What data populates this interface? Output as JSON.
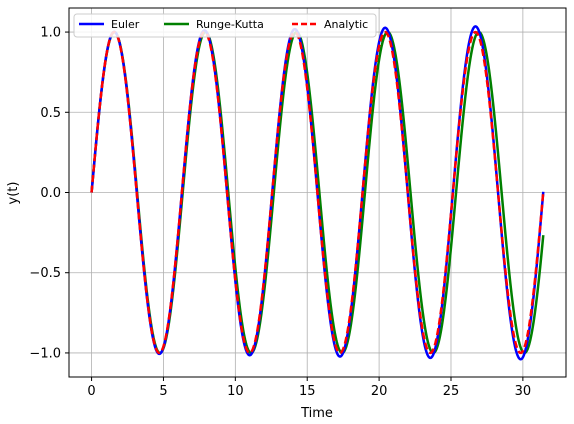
{
  "chart_data": {
    "type": "line",
    "title": "",
    "xlabel": "Time",
    "ylabel": "y(t)",
    "xlim": [
      -1.57,
      33.0
    ],
    "ylim": [
      -1.15,
      1.15
    ],
    "xticks": [
      0,
      5,
      10,
      15,
      20,
      25,
      30
    ],
    "xtick_labels": [
      "0",
      "5",
      "10",
      "15",
      "20",
      "25",
      "30"
    ],
    "yticks": [
      1.0,
      0.5,
      0.0,
      -0.5,
      -1.0
    ],
    "ytick_labels": [
      "1.0",
      "0.5",
      "0.0",
      "−0.5",
      "−1.0"
    ],
    "grid": true,
    "legend_position": "top-left",
    "legend_columns": 3,
    "series": [
      {
        "name": "Euler",
        "color": "#0000ff",
        "style": "solid",
        "model": {
          "omega": 1.0,
          "amp_growth": 0.0013,
          "phase_lag": 0.0
        },
        "x": [
          0.0,
          1.57,
          3.14,
          4.71,
          6.28,
          7.85,
          9.42,
          11.0,
          12.57,
          14.14,
          15.71,
          17.28,
          18.85,
          20.42,
          21.99,
          23.56,
          25.13,
          26.7,
          28.27,
          29.85,
          31.42
        ],
        "values": [
          0.0,
          1.0,
          0.0,
          -1.0,
          0.0,
          1.0,
          0.0,
          -1.01,
          0.0,
          1.01,
          0.0,
          -1.02,
          0.0,
          1.03,
          0.0,
          -1.03,
          0.0,
          1.04,
          0.0,
          -1.04,
          0.0
        ]
      },
      {
        "name": "Runge-Kutta",
        "color": "#008000",
        "style": "solid",
        "model": {
          "omega": 0.9913,
          "amp_growth": 0.0,
          "phase_lag": 0.0
        },
        "x": [
          0.0,
          1.57,
          3.14,
          4.71,
          6.28,
          7.85,
          9.42,
          11.0,
          12.57,
          14.14,
          15.71,
          17.28,
          18.85,
          20.42,
          21.99,
          23.56,
          25.13,
          26.7,
          28.27,
          29.85,
          31.42
        ],
        "values": [
          0.0,
          1.0,
          0.01,
          -1.0,
          0.05,
          1.0,
          0.08,
          -0.99,
          0.11,
          0.99,
          0.14,
          -0.98,
          0.16,
          0.98,
          0.19,
          -0.97,
          0.22,
          0.96,
          0.25,
          -0.95,
          -0.3
        ]
      },
      {
        "name": "Analytic",
        "color": "#ff0000",
        "style": "dashed",
        "model": {
          "omega": 1.0,
          "amp_growth": 0.0,
          "phase_lag": 0.0
        },
        "x": [
          0.0,
          1.57,
          3.14,
          4.71,
          6.28,
          7.85,
          9.42,
          11.0,
          12.57,
          14.14,
          15.71,
          17.28,
          18.85,
          20.42,
          21.99,
          23.56,
          25.13,
          26.7,
          28.27,
          29.85,
          31.42
        ],
        "values": [
          0.0,
          1.0,
          0.0,
          -1.0,
          0.0,
          1.0,
          0.0,
          -1.0,
          0.0,
          1.0,
          0.0,
          -1.0,
          0.0,
          1.0,
          0.0,
          -1.0,
          0.0,
          1.0,
          0.0,
          -1.0,
          0.0
        ]
      }
    ]
  }
}
